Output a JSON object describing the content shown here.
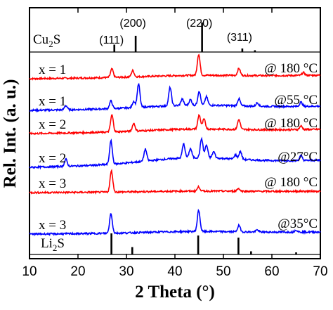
{
  "chart_data": {
    "type": "line",
    "xlabel": "2 Theta (°)",
    "ylabel": "Rel. Int. (a. u.)",
    "xlim": [
      10,
      70
    ],
    "xticks": [
      "10",
      "20",
      "30",
      "40",
      "50",
      "60",
      "70"
    ],
    "reference_top": {
      "name_base": "Cu",
      "name_sub": "2",
      "name_tail": "S",
      "color": "#000000",
      "peaks": [
        [
          27.5,
          0.25
        ],
        [
          31.9,
          0.55
        ],
        [
          45.6,
          1.0
        ],
        [
          53.9,
          0.12
        ],
        [
          56.5,
          0.06
        ]
      ],
      "indices": [
        {
          "x": 27.5,
          "label": "(111)"
        },
        {
          "x": 31.9,
          "label": "(200)"
        },
        {
          "x": 45.6,
          "label": "(220)"
        },
        {
          "x": 53.9,
          "label": "(311)"
        }
      ]
    },
    "reference_bottom": {
      "name_base": "Li",
      "name_sub": "2",
      "name_tail": "S",
      "color": "#000000",
      "peaks": [
        [
          26.9,
          1.0
        ],
        [
          31.2,
          0.35
        ],
        [
          44.8,
          0.9
        ],
        [
          53.1,
          0.8
        ],
        [
          55.7,
          0.15
        ],
        [
          65.0,
          0.1
        ]
      ]
    },
    "series": [
      {
        "name": "x = 1",
        "temp": "@ 180 °C",
        "color": "#ff0000",
        "peaks": [
          [
            27.0,
            12
          ],
          [
            31.3,
            9
          ],
          [
            44.9,
            30
          ],
          [
            53.2,
            10
          ],
          [
            66.5,
            4
          ]
        ]
      },
      {
        "name": "x = 1",
        "temp": "@55 °C",
        "color": "#0000ff",
        "peaks": [
          [
            17.5,
            6
          ],
          [
            26.8,
            11
          ],
          [
            31.5,
            9
          ],
          [
            32.5,
            33
          ],
          [
            39.0,
            26
          ],
          [
            41.5,
            9
          ],
          [
            43.2,
            8
          ],
          [
            45.0,
            20
          ],
          [
            46.5,
            12
          ],
          [
            53.2,
            10
          ],
          [
            57.0,
            5
          ],
          [
            66.0,
            6
          ]
        ]
      },
      {
        "name": "x = 2",
        "temp": "@ 180 °C",
        "color": "#ff0000",
        "peaks": [
          [
            27.0,
            24
          ],
          [
            31.5,
            11
          ],
          [
            45.0,
            20
          ],
          [
            46.0,
            14
          ],
          [
            53.2,
            14
          ],
          [
            66.0,
            5
          ]
        ]
      },
      {
        "name": "x = 2",
        "temp": "@27°C",
        "color": "#0000ff",
        "peaks": [
          [
            17.5,
            10
          ],
          [
            26.8,
            33
          ],
          [
            33.9,
            17
          ],
          [
            41.8,
            20
          ],
          [
            43.2,
            13
          ],
          [
            45.5,
            27
          ],
          [
            46.5,
            18
          ],
          [
            48.0,
            9
          ],
          [
            52.5,
            6
          ],
          [
            53.5,
            11
          ],
          [
            66.0,
            7
          ]
        ]
      },
      {
        "name": "x = 3",
        "temp": "@ 180 °C",
        "color": "#ff0000",
        "peaks": [
          [
            26.9,
            30
          ],
          [
            44.9,
            6
          ],
          [
            53.1,
            4
          ]
        ]
      },
      {
        "name": "x = 3",
        "temp": "@35°C",
        "color": "#0000ff",
        "peaks": [
          [
            26.8,
            28
          ],
          [
            44.9,
            30
          ],
          [
            53.2,
            9
          ],
          [
            57.0,
            3
          ],
          [
            65.0,
            3
          ]
        ]
      }
    ]
  }
}
